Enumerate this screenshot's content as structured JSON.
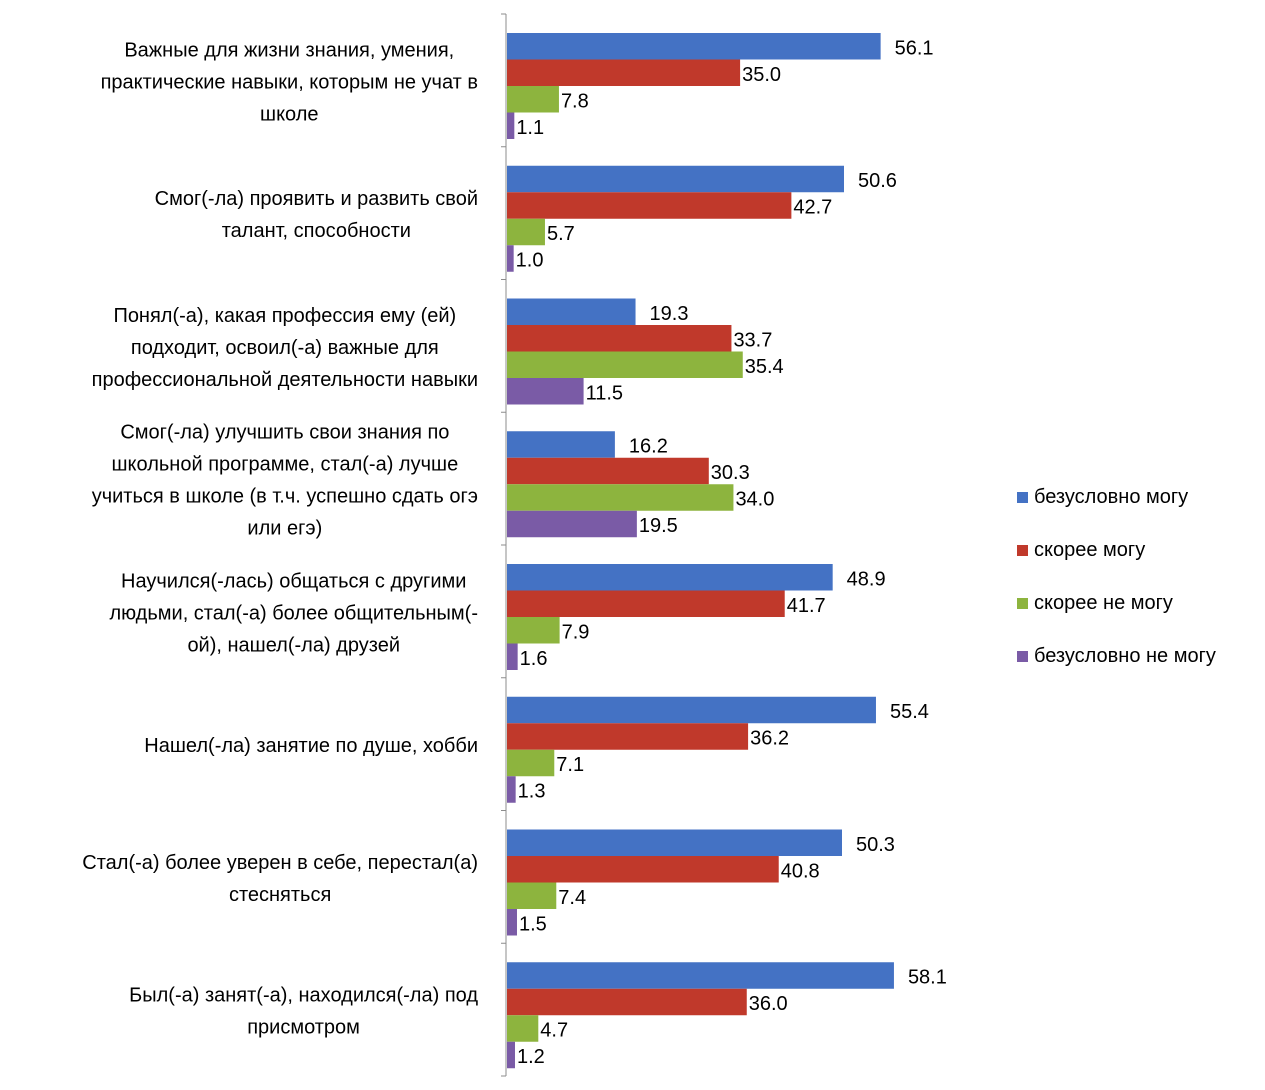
{
  "chart_data": {
    "type": "bar",
    "orientation": "horizontal",
    "categories": [
      "Важные для жизни знания, умения, практические навыки, которым не учат в школе",
      "Смог(-ла) проявить и развить свой талант, способности",
      "Понял(-а), какая профессия ему (ей) подходит, освоил(-а) важные для профессиональной деятельности навыки",
      "Смог(-ла) улучшить свои знания по школьной программе, стал(-а) лучше учиться в школе (в т.ч. успешно сдать огэ или егэ)",
      "Научился(-лась) общаться с другими людьми, стал(-а) более общительным(-ой), нашел(-ла) друзей",
      "Нашел(-ла) занятие по душе, хобби",
      "Стал(-а) более уверен в себе, перестал(а) стесняться",
      "Был(-а) занят(-а), находился(-ла) под присмотром"
    ],
    "category_lines": [
      [
        "Важные для жизни знания, умения,",
        "практические навыки, которым не учат в",
        "школе"
      ],
      [
        "Смог(-ла) проявить и развить свой",
        "талант, способности"
      ],
      [
        "Понял(-а), какая профессия ему (ей)",
        "подходит, освоил(-а) важные для",
        "профессиональной деятельности навыки"
      ],
      [
        "Смог(-ла) улучшить свои знания по",
        "школьной программе, стал(-а) лучше",
        "учиться в школе (в т.ч. успешно сдать огэ",
        "или егэ)"
      ],
      [
        "Научился(-лась) общаться с другими",
        "людьми, стал(-а) более общительным(-",
        "ой), нашел(-ла) друзей"
      ],
      [
        "Нашел(-ла) занятие по душе, хобби"
      ],
      [
        "Стал(-а) более уверен в себе, перестал(а)",
        "стесняться"
      ],
      [
        "Был(-а) занят(-а), находился(-ла) под",
        "присмотром"
      ]
    ],
    "series": [
      {
        "name": "безусловно могу",
        "color": "#4472C4",
        "values": [
          56.1,
          50.6,
          19.3,
          16.2,
          48.9,
          55.4,
          50.3,
          58.1
        ]
      },
      {
        "name": "скорее могу",
        "color": "#C0392B",
        "values": [
          35.0,
          42.7,
          33.7,
          30.3,
          41.7,
          36.2,
          40.8,
          36.0
        ]
      },
      {
        "name": "скорее не могу",
        "color": "#8DB43E",
        "values": [
          7.8,
          5.7,
          35.4,
          34.0,
          7.9,
          7.1,
          7.4,
          4.7
        ]
      },
      {
        "name": "безусловно не могу",
        "color": "#7A5BA6",
        "values": [
          1.1,
          1.0,
          11.5,
          19.5,
          1.6,
          1.3,
          1.5,
          1.2
        ]
      }
    ],
    "value_format": "one decimal",
    "xlim": [
      0,
      60
    ],
    "legend_position": "right",
    "grid": false
  }
}
